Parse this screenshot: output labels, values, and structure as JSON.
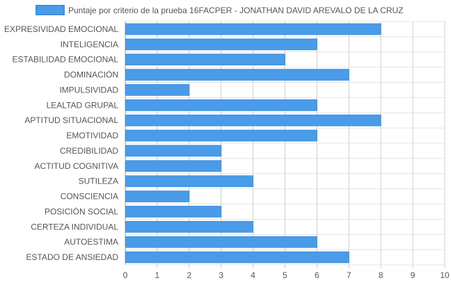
{
  "colors": {
    "bar_fill": "#4a9be8",
    "bar_stroke": "#3d8fe0",
    "grid": "#e4e4e4",
    "axis": "#9a9a9a",
    "text": "#555555"
  },
  "chart_data": {
    "type": "bar",
    "orientation": "horizontal",
    "series": [
      {
        "name": "Puntaje por criterio de la prueba 16FACPER - JONATHAN DAVID AREVALO DE LA CRUZ",
        "values": [
          8,
          6,
          5,
          7,
          2,
          6,
          8,
          6,
          3,
          3,
          4,
          2,
          3,
          4,
          6,
          7
        ]
      }
    ],
    "categories": [
      "EXPRESIVIDAD EMOCIONAL",
      "INTELIGENCIA",
      "ESTABILIDAD EMOCIONAL",
      "DOMINACIÓN",
      "IMPULSIVIDAD",
      "LEALTAD GRUPAL",
      "APTITUD SITUACIONAL",
      "EMOTIVIDAD",
      "CREDIBILIDAD",
      "ACTITUD COGNITIVA",
      "SUTILEZA",
      "CONSCIENCIA",
      "POSICIÓN SOCIAL",
      "CERTEZA INDIVIDUAL",
      "AUTOESTIMA",
      "ESTADO DE ANSIEDAD"
    ],
    "xlim": [
      0,
      10
    ],
    "xticks": [
      "0",
      "1",
      "2",
      "3",
      "4",
      "5",
      "6",
      "7",
      "8",
      "9",
      "10"
    ],
    "grid": true,
    "legend_position": "top"
  }
}
